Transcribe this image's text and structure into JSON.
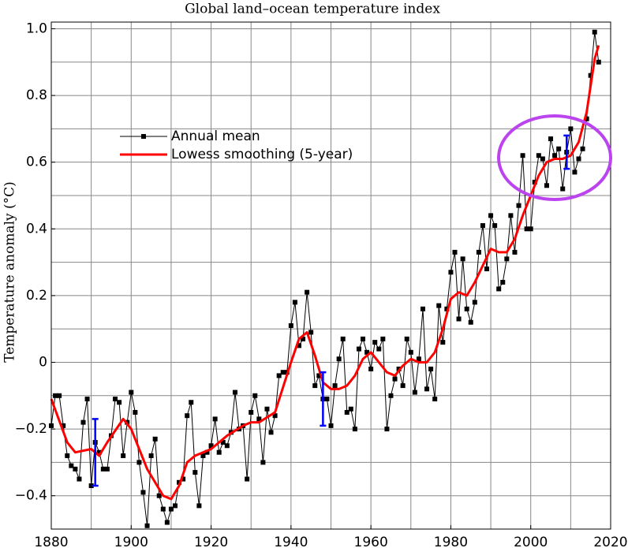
{
  "chart_data": {
    "type": "line",
    "title": "Global land–ocean temperature index",
    "y_label": "Temperature anomaly (°C)",
    "xlim": [
      1880,
      2020
    ],
    "ylim": [
      -0.5,
      1.02
    ],
    "xticks": [
      1880,
      1900,
      1920,
      1940,
      1960,
      1980,
      2000,
      2020
    ],
    "yticks": [
      {
        "value": -0.4,
        "label": "−0.4"
      },
      {
        "value": -0.2,
        "label": "−0.2"
      },
      0,
      0.2,
      0.4,
      0.6,
      0.8,
      {
        "value": 1.0,
        "label": "1.0"
      }
    ],
    "x_grid": [
      1880,
      1890,
      1900,
      1910,
      1920,
      1930,
      1940,
      1950,
      1960,
      1970,
      1980,
      1990,
      2000,
      2010,
      2020
    ],
    "y_grid": [
      -0.4,
      -0.3,
      -0.2,
      -0.1,
      0,
      0.1,
      0.2,
      0.3,
      0.4,
      0.5,
      0.6,
      0.7,
      0.8,
      0.9,
      1.0
    ],
    "grid": true,
    "series": [
      {
        "name": "Annual mean",
        "color": "#000000",
        "marker": "square",
        "x": [
          1880,
          1881,
          1882,
          1883,
          1884,
          1885,
          1886,
          1887,
          1888,
          1889,
          1890,
          1891,
          1892,
          1893,
          1894,
          1895,
          1896,
          1897,
          1898,
          1899,
          1900,
          1901,
          1902,
          1903,
          1904,
          1905,
          1906,
          1907,
          1908,
          1909,
          1910,
          1911,
          1912,
          1913,
          1914,
          1915,
          1916,
          1917,
          1918,
          1919,
          1920,
          1921,
          1922,
          1923,
          1924,
          1925,
          1926,
          1927,
          1928,
          1929,
          1930,
          1931,
          1932,
          1933,
          1934,
          1935,
          1936,
          1937,
          1938,
          1939,
          1940,
          1941,
          1942,
          1943,
          1944,
          1945,
          1946,
          1947,
          1948,
          1949,
          1950,
          1951,
          1952,
          1953,
          1954,
          1955,
          1956,
          1957,
          1958,
          1959,
          1960,
          1961,
          1962,
          1963,
          1964,
          1965,
          1966,
          1967,
          1968,
          1969,
          1970,
          1971,
          1972,
          1973,
          1974,
          1975,
          1976,
          1977,
          1978,
          1979,
          1980,
          1981,
          1982,
          1983,
          1984,
          1985,
          1986,
          1987,
          1988,
          1989,
          1990,
          1991,
          1992,
          1993,
          1994,
          1995,
          1996,
          1997,
          1998,
          1999,
          2000,
          2001,
          2002,
          2003,
          2004,
          2005,
          2006,
          2007,
          2008,
          2009,
          2010,
          2011,
          2012,
          2013,
          2014,
          2015,
          2016,
          2017
        ],
        "values": [
          -0.19,
          -0.1,
          -0.1,
          -0.19,
          -0.28,
          -0.31,
          -0.32,
          -0.35,
          -0.18,
          -0.11,
          -0.37,
          -0.24,
          -0.27,
          -0.32,
          -0.32,
          -0.22,
          -0.11,
          -0.12,
          -0.28,
          -0.18,
          -0.09,
          -0.15,
          -0.3,
          -0.39,
          -0.49,
          -0.28,
          -0.23,
          -0.4,
          -0.44,
          -0.48,
          -0.44,
          -0.43,
          -0.36,
          -0.35,
          -0.16,
          -0.12,
          -0.33,
          -0.43,
          -0.28,
          -0.27,
          -0.25,
          -0.17,
          -0.27,
          -0.24,
          -0.25,
          -0.21,
          -0.09,
          -0.2,
          -0.19,
          -0.35,
          -0.15,
          -0.1,
          -0.17,
          -0.3,
          -0.14,
          -0.21,
          -0.16,
          -0.04,
          -0.03,
          -0.03,
          0.11,
          0.18,
          0.05,
          0.07,
          0.21,
          0.09,
          -0.07,
          -0.04,
          -0.11,
          -0.11,
          -0.19,
          -0.07,
          0.01,
          0.07,
          -0.15,
          -0.14,
          -0.2,
          0.04,
          0.07,
          0.03,
          -0.02,
          0.06,
          0.04,
          0.07,
          -0.2,
          -0.1,
          -0.05,
          -0.02,
          -0.07,
          0.07,
          0.03,
          -0.09,
          0.01,
          0.16,
          -0.08,
          -0.02,
          -0.11,
          0.17,
          0.06,
          0.16,
          0.27,
          0.33,
          0.13,
          0.31,
          0.16,
          0.12,
          0.18,
          0.33,
          0.41,
          0.28,
          0.44,
          0.41,
          0.22,
          0.24,
          0.31,
          0.44,
          0.33,
          0.47,
          0.62,
          0.4,
          0.4,
          0.54,
          0.62,
          0.61,
          0.53,
          0.67,
          0.62,
          0.64,
          0.52,
          0.63,
          0.7,
          0.57,
          0.61,
          0.64,
          0.73,
          0.86,
          0.99,
          0.9
        ]
      },
      {
        "name": "Lowess smoothing (5-year)",
        "color": "#ff0000",
        "x": [
          1880,
          1884,
          1886,
          1890,
          1892,
          1894,
          1898,
          1900,
          1904,
          1908,
          1910,
          1912,
          1914,
          1916,
          1920,
          1924,
          1928,
          1930,
          1932,
          1936,
          1940,
          1942,
          1944,
          1946,
          1948,
          1950,
          1952,
          1954,
          1956,
          1958,
          1960,
          1962,
          1964,
          1966,
          1968,
          1970,
          1972,
          1974,
          1976,
          1978,
          1980,
          1982,
          1984,
          1986,
          1988,
          1990,
          1992,
          1994,
          1996,
          1998,
          2000,
          2002,
          2004,
          2006,
          2008,
          2010,
          2012,
          2014,
          2016,
          2017
        ],
        "values": [
          -0.11,
          -0.24,
          -0.27,
          -0.26,
          -0.28,
          -0.24,
          -0.17,
          -0.2,
          -0.32,
          -0.4,
          -0.41,
          -0.37,
          -0.3,
          -0.28,
          -0.26,
          -0.22,
          -0.19,
          -0.18,
          -0.18,
          -0.15,
          0.0,
          0.07,
          0.09,
          0.02,
          -0.06,
          -0.08,
          -0.08,
          -0.07,
          -0.04,
          0.01,
          0.03,
          0.0,
          -0.03,
          -0.04,
          -0.01,
          0.01,
          0.0,
          0.0,
          0.03,
          0.1,
          0.19,
          0.21,
          0.2,
          0.24,
          0.29,
          0.34,
          0.33,
          0.33,
          0.37,
          0.44,
          0.5,
          0.56,
          0.6,
          0.61,
          0.61,
          0.62,
          0.66,
          0.75,
          0.91,
          0.95
        ]
      }
    ],
    "error_bars": {
      "color": "#0000ff",
      "x": [
        1891,
        1948,
        2009
      ],
      "values": [
        -0.27,
        -0.11,
        0.63
      ],
      "errors": [
        0.1,
        0.08,
        0.05
      ]
    }
  }
}
